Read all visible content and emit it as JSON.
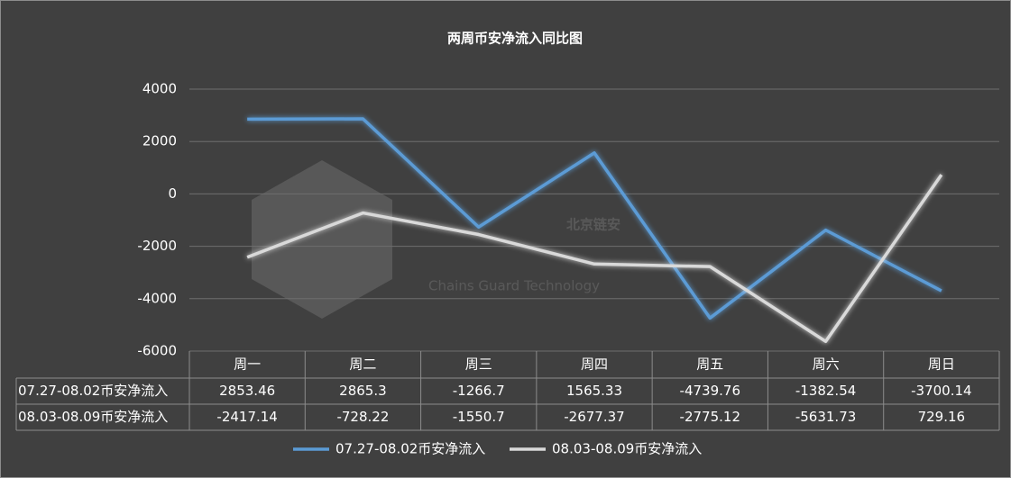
{
  "chart_data": {
    "type": "line",
    "title": "两周币安净流入同比图",
    "categories": [
      "周一",
      "周二",
      "周三",
      "周四",
      "周五",
      "周六",
      "周日"
    ],
    "series": [
      {
        "name": "07.27-08.02币安净流入",
        "color": "#5b9bd5",
        "values": [
          2853.46,
          2865.3,
          -1266.7,
          1565.33,
          -4739.76,
          -1382.54,
          -3700.14
        ]
      },
      {
        "name": "08.03-08.09币安净流入",
        "color": "#d9d9d9",
        "values": [
          -2417.14,
          -728.22,
          -1550.7,
          -2677.37,
          -2775.12,
          -5631.73,
          729.16
        ]
      }
    ],
    "ylim": [
      -6000,
      4000
    ],
    "yticks": [
      4000,
      2000,
      0,
      -2000,
      -4000,
      -6000
    ],
    "grid": true,
    "watermark": {
      "title": "北京链安",
      "subtitle": "Chains Guard Technology"
    }
  }
}
